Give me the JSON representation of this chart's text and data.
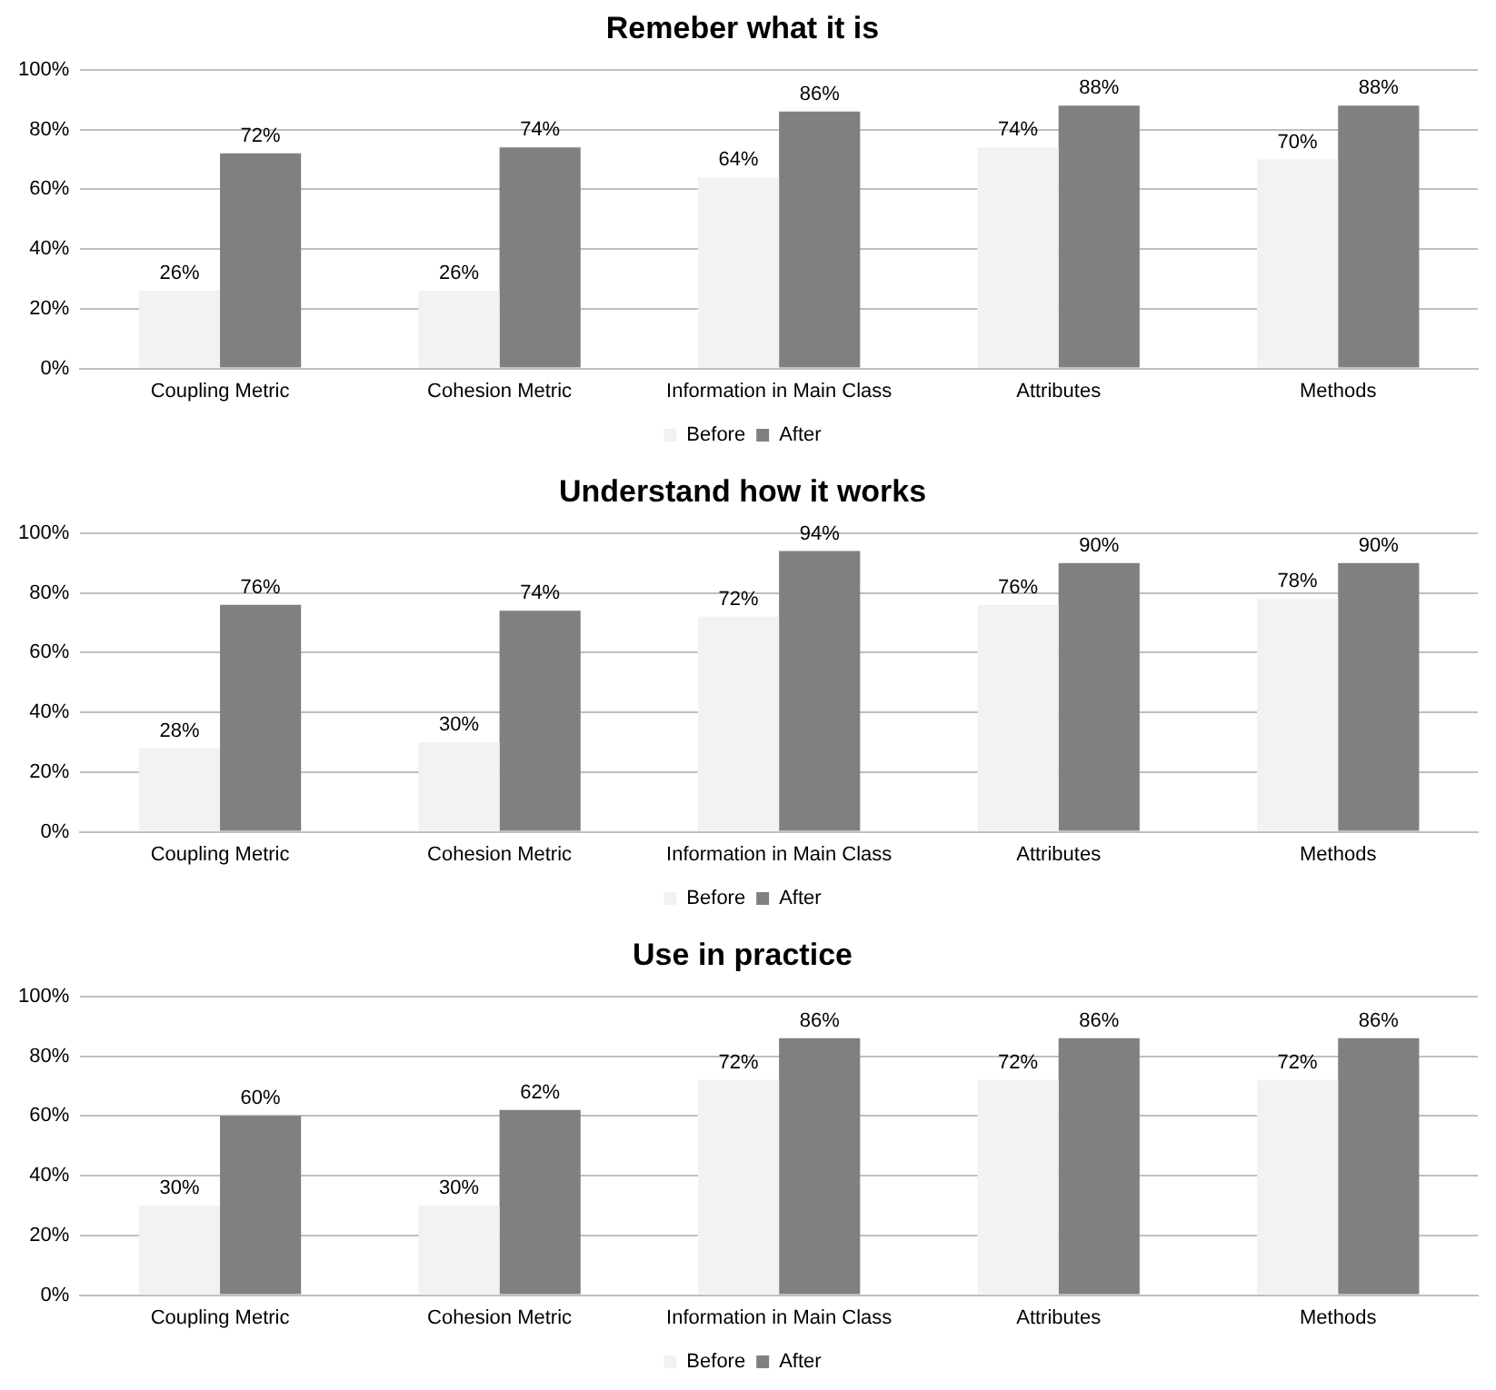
{
  "chart_data": [
    {
      "type": "bar",
      "title": "Remeber what it is",
      "categories": [
        "Coupling Metric",
        "Cohesion Metric",
        "Information in Main Class",
        "Attributes",
        "Methods"
      ],
      "series": [
        {
          "name": "Before",
          "color": "#f2f2f2",
          "values": [
            26,
            26,
            64,
            74,
            70
          ],
          "value_labels": [
            "26%",
            "26%",
            "64%",
            "74%",
            "70%"
          ]
        },
        {
          "name": "After",
          "color": "#808080",
          "values": [
            72,
            74,
            86,
            88,
            88
          ],
          "value_labels": [
            "72%",
            "74%",
            "86%",
            "88%",
            "88%"
          ]
        }
      ],
      "ylim": [
        0,
        100
      ],
      "yticks": [
        {
          "value": 0,
          "label": "0%"
        },
        {
          "value": 20,
          "label": "20%"
        },
        {
          "value": 40,
          "label": "40%"
        },
        {
          "value": 60,
          "label": "60%"
        },
        {
          "value": 80,
          "label": "80%"
        },
        {
          "value": 100,
          "label": "100%"
        }
      ],
      "grid": "y",
      "legend": "bottom"
    },
    {
      "type": "bar",
      "title": "Understand how it works",
      "categories": [
        "Coupling Metric",
        "Cohesion Metric",
        "Information in Main Class",
        "Attributes",
        "Methods"
      ],
      "series": [
        {
          "name": "Before",
          "color": "#f2f2f2",
          "values": [
            28,
            30,
            72,
            76,
            78
          ],
          "value_labels": [
            "28%",
            "30%",
            "72%",
            "76%",
            "78%"
          ]
        },
        {
          "name": "After",
          "color": "#808080",
          "values": [
            76,
            74,
            94,
            90,
            90
          ],
          "value_labels": [
            "76%",
            "74%",
            "94%",
            "90%",
            "90%"
          ]
        }
      ],
      "ylim": [
        0,
        100
      ],
      "yticks": [
        {
          "value": 0,
          "label": "0%"
        },
        {
          "value": 20,
          "label": "20%"
        },
        {
          "value": 40,
          "label": "40%"
        },
        {
          "value": 60,
          "label": "60%"
        },
        {
          "value": 80,
          "label": "80%"
        },
        {
          "value": 100,
          "label": "100%"
        }
      ],
      "grid": "y",
      "legend": "bottom"
    },
    {
      "type": "bar",
      "title": "Use in practice",
      "categories": [
        "Coupling Metric",
        "Cohesion Metric",
        "Information in Main Class",
        "Attributes",
        "Methods"
      ],
      "series": [
        {
          "name": "Before",
          "color": "#f2f2f2",
          "values": [
            30,
            30,
            72,
            72,
            72
          ],
          "value_labels": [
            "30%",
            "30%",
            "72%",
            "72%",
            "72%"
          ]
        },
        {
          "name": "After",
          "color": "#808080",
          "values": [
            60,
            62,
            86,
            86,
            86
          ],
          "value_labels": [
            "60%",
            "62%",
            "86%",
            "86%",
            "86%"
          ]
        }
      ],
      "ylim": [
        0,
        100
      ],
      "yticks": [
        {
          "value": 0,
          "label": "0%"
        },
        {
          "value": 20,
          "label": "20%"
        },
        {
          "value": 40,
          "label": "40%"
        },
        {
          "value": 60,
          "label": "60%"
        },
        {
          "value": 80,
          "label": "80%"
        },
        {
          "value": 100,
          "label": "100%"
        }
      ],
      "grid": "y",
      "legend": "bottom"
    }
  ]
}
